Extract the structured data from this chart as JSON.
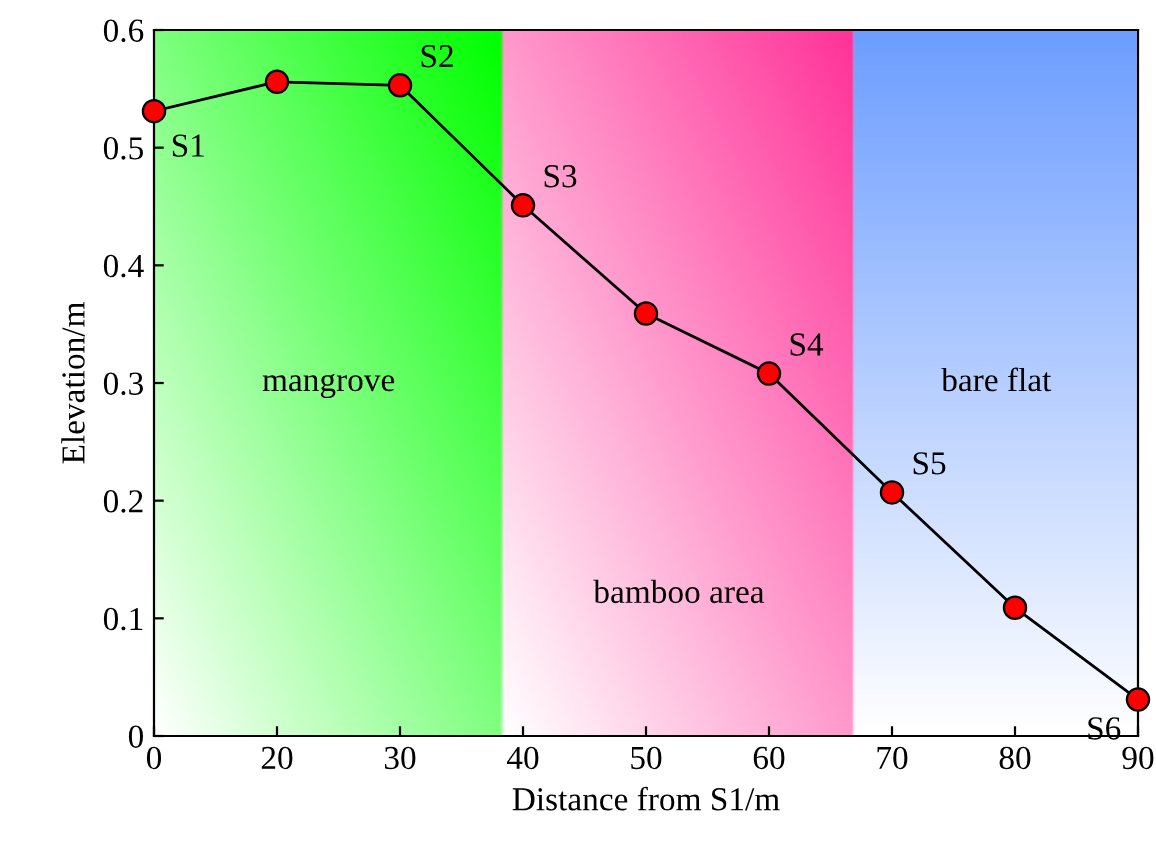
{
  "chart_data": {
    "type": "line",
    "xlabel": "Distance from S1/m",
    "ylabel": "Elevation/m",
    "categories": [
      "0",
      "20",
      "30",
      "40",
      "50",
      "60",
      "70",
      "80",
      "90"
    ],
    "series": [
      {
        "color": "#ff0000",
        "values": [
          0.531,
          0.556,
          0.553,
          0.451,
          0.359,
          0.308,
          0.207,
          0.109,
          0.031
        ]
      }
    ],
    "marker": "circle",
    "line_style": "solid",
    "ylim": [
      0,
      0.6
    ],
    "yticks": [
      0,
      0.1,
      0.2,
      0.3,
      0.4,
      0.5,
      0.6
    ],
    "grid": false,
    "legend": false,
    "annotations": [
      "mangrove",
      "bamboo area",
      "bare flat",
      {
        "text": "S1",
        "x": "0",
        "y": 0.531
      },
      {
        "text": "S2",
        "x": "30",
        "y": 0.553
      },
      {
        "text": "S3",
        "x": "40",
        "y": 0.451
      },
      {
        "text": "S4",
        "x": "60",
        "y": 0.308
      },
      {
        "text": "S5",
        "x": "70",
        "y": 0.207
      },
      {
        "text": "S6",
        "x": "90",
        "y": 0.031
      }
    ]
  }
}
